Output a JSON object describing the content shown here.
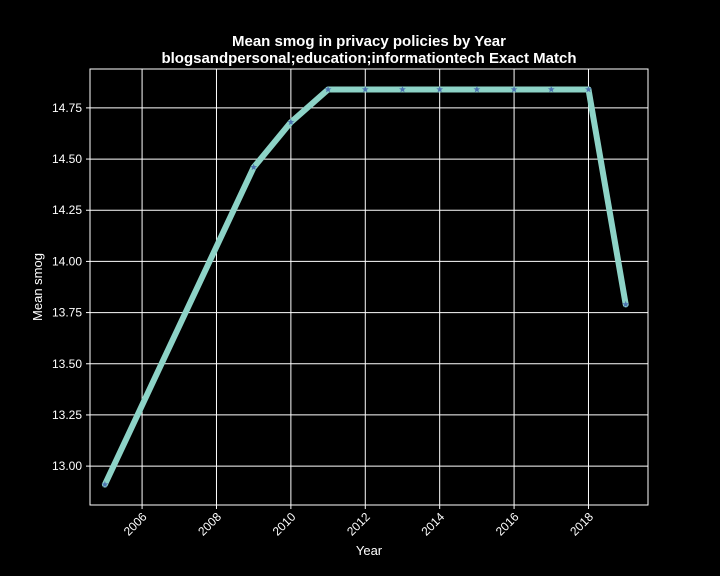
{
  "chart_data": {
    "type": "line",
    "title": "Mean smog in privacy policies by Year",
    "subtitle": "blogsandpersonal;education;informationtech Exact Match",
    "xlabel": "Year",
    "ylabel": "Mean smog",
    "x": [
      2005,
      2009,
      2010,
      2011,
      2012,
      2013,
      2014,
      2015,
      2016,
      2017,
      2018,
      2019
    ],
    "series": [
      {
        "values": [
          12.91,
          14.46,
          14.68,
          14.84,
          14.84,
          14.84,
          14.84,
          14.84,
          14.84,
          14.84,
          14.84,
          13.79
        ]
      }
    ],
    "xlim": [
      2004.6,
      2019.6
    ],
    "ylim": [
      12.81,
      14.94
    ],
    "xticks": [
      2006,
      2008,
      2010,
      2012,
      2014,
      2016,
      2018
    ],
    "yticks": [
      13.0,
      13.25,
      13.5,
      13.75,
      14.0,
      14.25,
      14.5,
      14.75
    ],
    "ytick_labels": [
      "13.00",
      "13.25",
      "13.50",
      "13.75",
      "14.00",
      "14.25",
      "14.50",
      "14.75"
    ],
    "grid": true,
    "legend": "none",
    "colors": {
      "background": "#000000",
      "line": "#8dd3c7",
      "marker": "#4c72b0",
      "grid": "#ffffff",
      "text": "#ffffff"
    }
  }
}
